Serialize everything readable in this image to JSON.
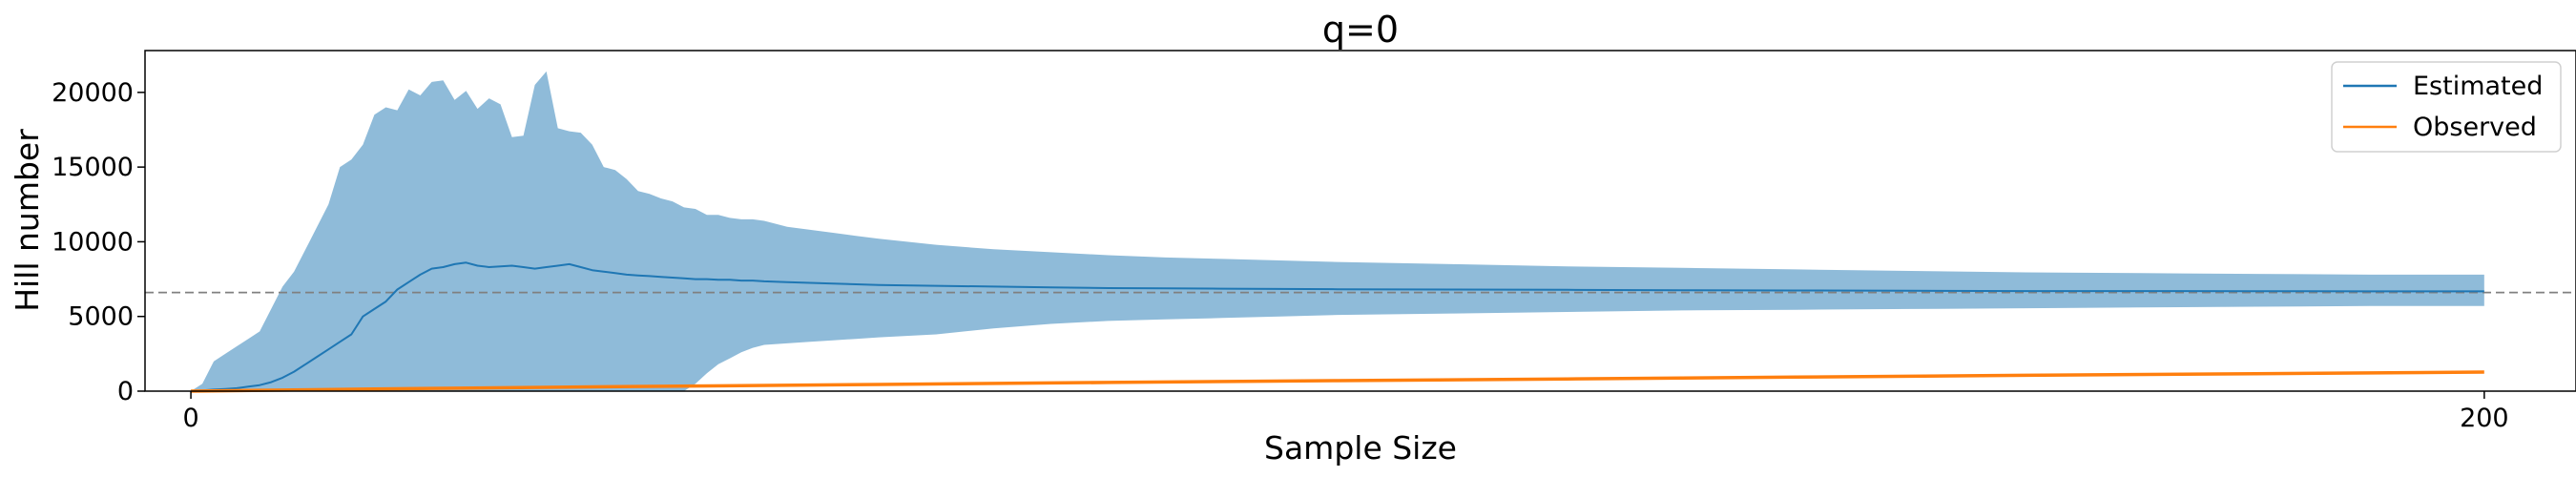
{
  "chart_data": {
    "type": "line",
    "title": "q=0",
    "xlabel": "Sample Size",
    "ylabel": "Hill number",
    "xlim": [
      -4,
      208
    ],
    "ylim": [
      0,
      22800
    ],
    "x_ticks": [
      0,
      200
    ],
    "y_ticks": [
      0,
      5000,
      10000,
      15000,
      20000
    ],
    "legend_position": "upper right",
    "reference_line": {
      "y": 6600,
      "style": "dashed",
      "color": "#808080"
    },
    "series": [
      {
        "name": "Estimated",
        "color": "#1f77b4",
        "x": [
          0,
          1,
          2,
          3,
          4,
          5,
          6,
          7,
          8,
          9,
          10,
          11,
          12,
          13,
          14,
          15,
          16,
          17,
          18,
          19,
          20,
          21,
          22,
          23,
          24,
          25,
          26,
          27,
          28,
          29,
          30,
          31,
          32,
          33,
          34,
          35,
          36,
          37,
          38,
          39,
          40,
          41,
          42,
          43,
          44,
          45,
          46,
          47,
          48,
          49,
          50,
          52,
          54,
          56,
          58,
          60,
          65,
          70,
          75,
          80,
          85,
          90,
          95,
          100,
          110,
          120,
          130,
          140,
          150,
          160,
          170,
          180,
          190,
          200
        ],
        "values": [
          0,
          50,
          100,
          150,
          200,
          300,
          400,
          600,
          900,
          1300,
          1800,
          2300,
          2800,
          3300,
          3800,
          5000,
          5500,
          6000,
          6800,
          7300,
          7800,
          8200,
          8300,
          8500,
          8600,
          8400,
          8300,
          8350,
          8400,
          8300,
          8200,
          8300,
          8400,
          8500,
          8300,
          8100,
          8000,
          7900,
          7800,
          7750,
          7700,
          7650,
          7600,
          7550,
          7500,
          7500,
          7450,
          7450,
          7400,
          7400,
          7350,
          7300,
          7250,
          7200,
          7150,
          7100,
          7050,
          7000,
          6950,
          6900,
          6880,
          6860,
          6840,
          6820,
          6800,
          6780,
          6760,
          6740,
          6720,
          6700,
          6700,
          6690,
          6680,
          6680
        ],
        "band_upper": [
          0,
          500,
          2000,
          2500,
          3000,
          3500,
          4000,
          5500,
          7000,
          8000,
          9500,
          11000,
          12500,
          15000,
          15500,
          16500,
          18500,
          19000,
          18800,
          20200,
          19800,
          20700,
          20800,
          19500,
          20100,
          18900,
          19600,
          19200,
          17000,
          17100,
          20500,
          21400,
          17600,
          17400,
          17300,
          16500,
          15000,
          14800,
          14200,
          13400,
          13200,
          12900,
          12700,
          12300,
          12200,
          11800,
          11800,
          11600,
          11500,
          11500,
          11400,
          11000,
          10800,
          10600,
          10400,
          10200,
          9800,
          9500,
          9300,
          9100,
          8950,
          8850,
          8750,
          8650,
          8500,
          8350,
          8250,
          8150,
          8050,
          7950,
          7900,
          7850,
          7800,
          7800
        ],
        "band_lower": [
          0,
          0,
          0,
          0,
          0,
          0,
          0,
          0,
          0,
          0,
          0,
          0,
          0,
          0,
          0,
          0,
          0,
          0,
          0,
          0,
          0,
          0,
          0,
          0,
          0,
          0,
          0,
          0,
          0,
          0,
          0,
          0,
          0,
          0,
          0,
          0,
          0,
          0,
          0,
          0,
          0,
          0,
          0,
          0,
          500,
          1200,
          1800,
          2200,
          2600,
          2900,
          3100,
          3200,
          3300,
          3400,
          3500,
          3600,
          3800,
          4200,
          4500,
          4700,
          4800,
          4900,
          5000,
          5100,
          5200,
          5300,
          5400,
          5450,
          5500,
          5550,
          5600,
          5650,
          5700,
          5700
        ]
      },
      {
        "name": "Observed",
        "color": "#ff7f0e",
        "x": [
          0,
          20,
          40,
          60,
          80,
          100,
          120,
          140,
          160,
          180,
          200
        ],
        "values": [
          0,
          180,
          320,
          450,
          580,
          700,
          820,
          940,
          1060,
          1170,
          1280
        ]
      }
    ]
  }
}
